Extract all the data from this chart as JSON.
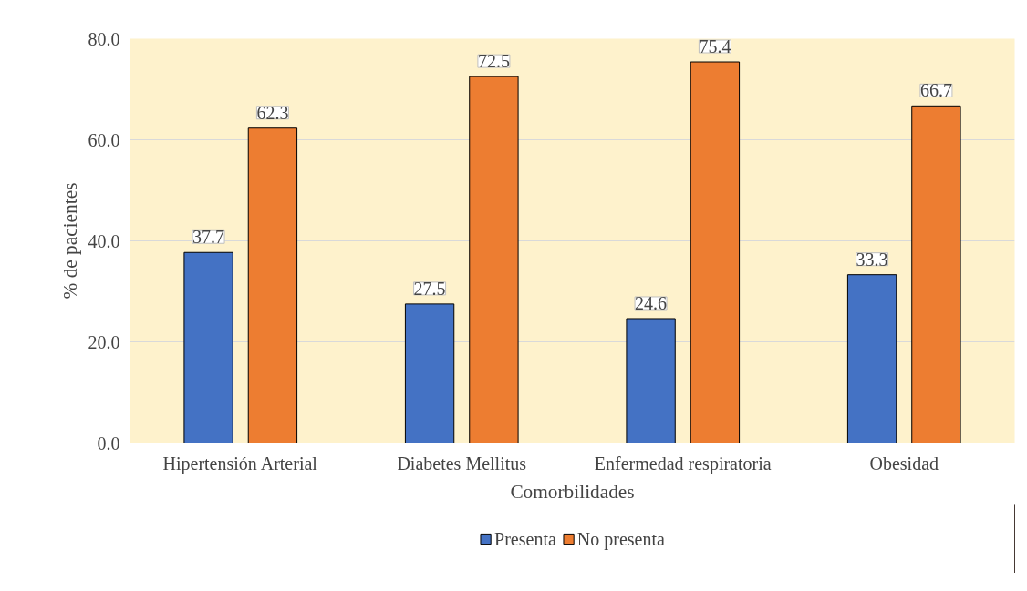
{
  "chart_data": {
    "type": "bar",
    "xlabel": "Comorbilidades",
    "ylabel": "% de pacientes",
    "categories": [
      "Hipertensión Arterial",
      "Diabetes Mellitus",
      "Enfermedad respiratoria",
      "Obesidad"
    ],
    "series": [
      {
        "name": "Presenta",
        "color": "#4472c4",
        "values": [
          37.7,
          27.5,
          24.6,
          33.3
        ]
      },
      {
        "name": "No presenta",
        "color": "#ed7d31",
        "values": [
          62.3,
          72.5,
          75.4,
          66.7
        ]
      }
    ],
    "ylim": [
      0,
      80
    ],
    "yticks": [
      {
        "value": 0,
        "label": "0.0"
      },
      {
        "value": 20,
        "label": "20.0"
      },
      {
        "value": 40,
        "label": "40.0"
      },
      {
        "value": 60,
        "label": "60.0"
      },
      {
        "value": 80,
        "label": "80.0"
      }
    ],
    "grid": "y",
    "legend": "bottom",
    "data_labels": true
  }
}
